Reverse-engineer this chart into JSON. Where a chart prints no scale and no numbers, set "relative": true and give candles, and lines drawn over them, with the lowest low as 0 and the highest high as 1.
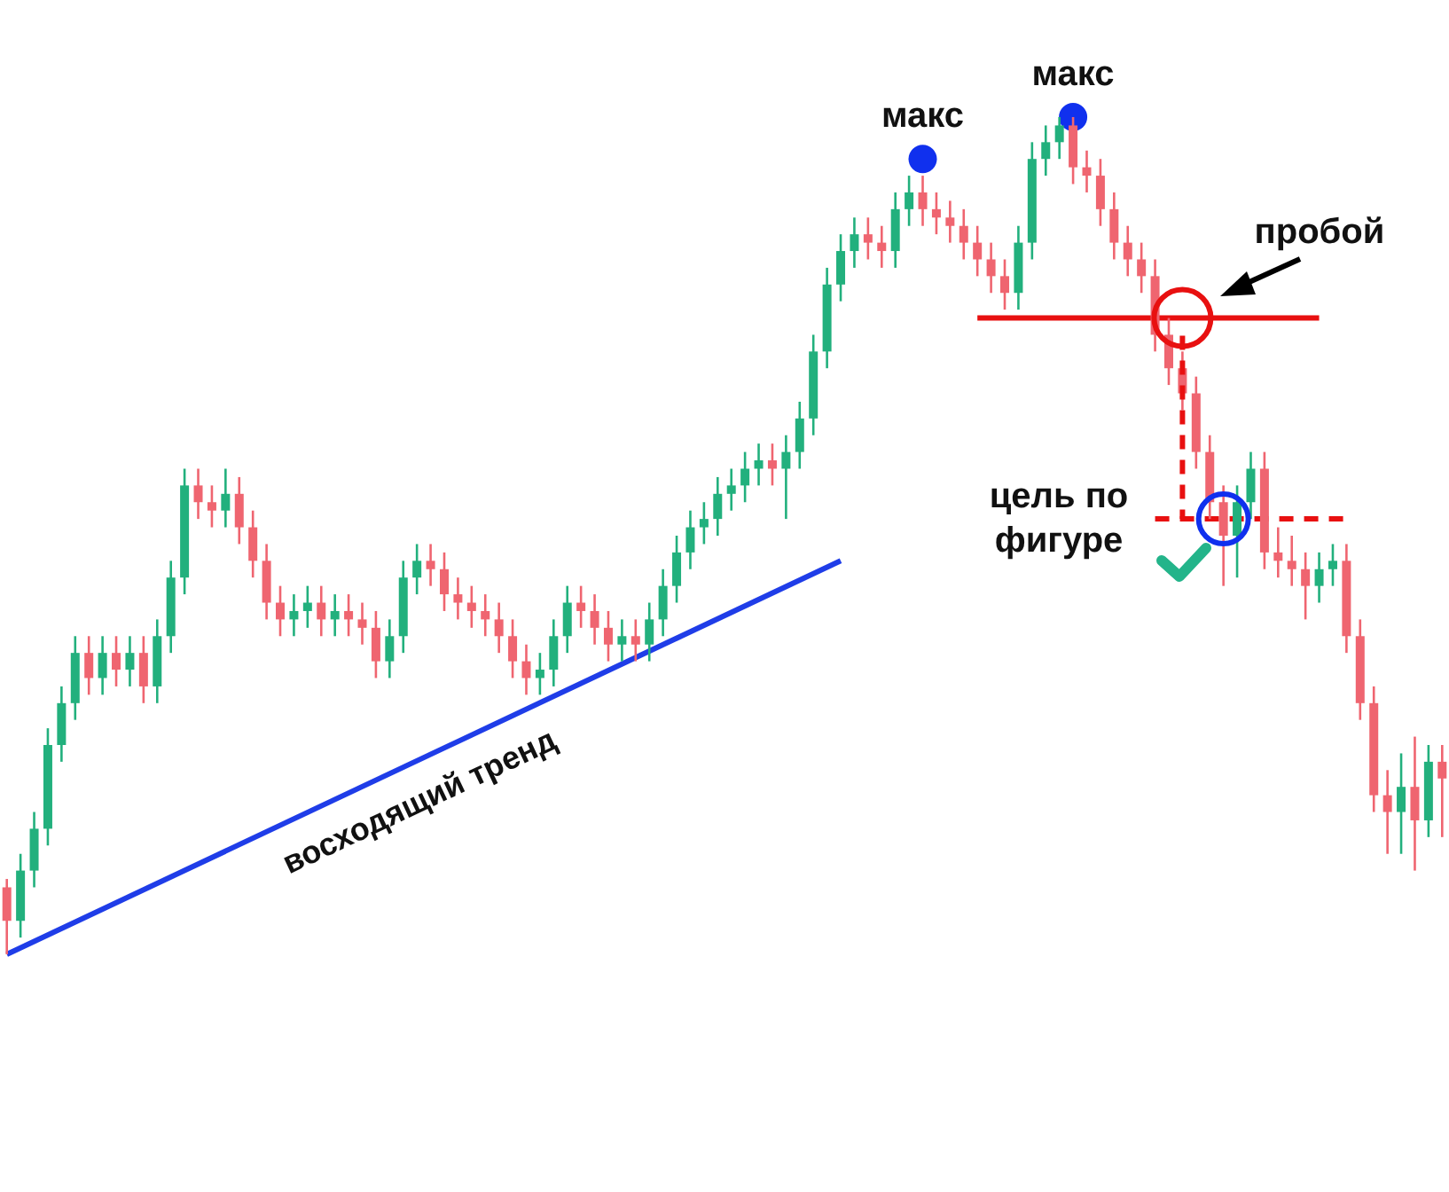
{
  "chart_data": {
    "type": "candlestick",
    "relative": true,
    "legend": false,
    "categories": [
      null,
      null,
      null,
      null,
      null,
      null,
      null,
      null,
      null,
      null,
      null,
      null,
      null,
      null,
      null,
      null,
      null,
      null,
      null,
      null,
      null,
      null,
      null,
      null,
      null,
      null,
      null,
      null,
      null,
      null,
      null,
      null,
      null,
      null,
      null,
      null,
      null,
      null,
      null,
      null,
      null,
      null,
      null,
      null,
      null,
      null,
      null,
      null,
      null,
      null,
      null,
      null,
      null,
      null,
      null,
      null,
      null,
      null,
      null,
      null,
      null,
      null,
      null,
      null,
      null,
      null,
      null,
      null,
      null,
      null,
      null,
      null,
      null,
      null,
      null,
      null,
      null,
      null,
      null,
      null,
      null,
      null,
      null,
      null,
      null,
      null,
      null,
      null,
      null,
      null,
      null,
      null,
      null,
      null,
      null,
      null,
      null,
      null,
      null,
      null,
      null,
      null,
      null,
      null,
      null,
      null
    ],
    "ohlc": [
      [
        0.08,
        0.09,
        0.0,
        0.04
      ],
      [
        0.04,
        0.12,
        0.02,
        0.1
      ],
      [
        0.1,
        0.17,
        0.08,
        0.15
      ],
      [
        0.15,
        0.27,
        0.13,
        0.25
      ],
      [
        0.25,
        0.32,
        0.23,
        0.3
      ],
      [
        0.3,
        0.38,
        0.28,
        0.36
      ],
      [
        0.36,
        0.38,
        0.31,
        0.33
      ],
      [
        0.33,
        0.38,
        0.31,
        0.36
      ],
      [
        0.36,
        0.38,
        0.32,
        0.34
      ],
      [
        0.34,
        0.38,
        0.32,
        0.36
      ],
      [
        0.36,
        0.38,
        0.3,
        0.32
      ],
      [
        0.32,
        0.4,
        0.3,
        0.38
      ],
      [
        0.38,
        0.47,
        0.36,
        0.45
      ],
      [
        0.45,
        0.58,
        0.43,
        0.56
      ],
      [
        0.56,
        0.58,
        0.52,
        0.54
      ],
      [
        0.54,
        0.56,
        0.51,
        0.53
      ],
      [
        0.53,
        0.58,
        0.51,
        0.55
      ],
      [
        0.55,
        0.57,
        0.49,
        0.51
      ],
      [
        0.51,
        0.53,
        0.45,
        0.47
      ],
      [
        0.47,
        0.49,
        0.4,
        0.42
      ],
      [
        0.42,
        0.44,
        0.38,
        0.4
      ],
      [
        0.4,
        0.43,
        0.38,
        0.41
      ],
      [
        0.41,
        0.44,
        0.39,
        0.42
      ],
      [
        0.42,
        0.44,
        0.38,
        0.4
      ],
      [
        0.4,
        0.43,
        0.38,
        0.41
      ],
      [
        0.41,
        0.43,
        0.38,
        0.4
      ],
      [
        0.4,
        0.42,
        0.37,
        0.39
      ],
      [
        0.39,
        0.41,
        0.33,
        0.35
      ],
      [
        0.35,
        0.4,
        0.33,
        0.38
      ],
      [
        0.38,
        0.47,
        0.36,
        0.45
      ],
      [
        0.45,
        0.49,
        0.43,
        0.47
      ],
      [
        0.47,
        0.49,
        0.44,
        0.46
      ],
      [
        0.46,
        0.48,
        0.41,
        0.43
      ],
      [
        0.43,
        0.45,
        0.4,
        0.42
      ],
      [
        0.42,
        0.44,
        0.39,
        0.41
      ],
      [
        0.41,
        0.43,
        0.38,
        0.4
      ],
      [
        0.4,
        0.42,
        0.36,
        0.38
      ],
      [
        0.38,
        0.4,
        0.33,
        0.35
      ],
      [
        0.35,
        0.37,
        0.31,
        0.33
      ],
      [
        0.33,
        0.36,
        0.31,
        0.34
      ],
      [
        0.34,
        0.4,
        0.32,
        0.38
      ],
      [
        0.38,
        0.44,
        0.36,
        0.42
      ],
      [
        0.42,
        0.44,
        0.39,
        0.41
      ],
      [
        0.41,
        0.43,
        0.37,
        0.39
      ],
      [
        0.39,
        0.41,
        0.35,
        0.37
      ],
      [
        0.37,
        0.4,
        0.35,
        0.38
      ],
      [
        0.38,
        0.4,
        0.35,
        0.37
      ],
      [
        0.37,
        0.42,
        0.35,
        0.4
      ],
      [
        0.4,
        0.46,
        0.38,
        0.44
      ],
      [
        0.44,
        0.5,
        0.42,
        0.48
      ],
      [
        0.48,
        0.53,
        0.46,
        0.51
      ],
      [
        0.51,
        0.54,
        0.49,
        0.52
      ],
      [
        0.52,
        0.57,
        0.5,
        0.55
      ],
      [
        0.55,
        0.58,
        0.53,
        0.56
      ],
      [
        0.56,
        0.6,
        0.54,
        0.58
      ],
      [
        0.58,
        0.61,
        0.56,
        0.59
      ],
      [
        0.59,
        0.61,
        0.56,
        0.58
      ],
      [
        0.58,
        0.62,
        0.52,
        0.6
      ],
      [
        0.6,
        0.66,
        0.58,
        0.64
      ],
      [
        0.64,
        0.74,
        0.62,
        0.72
      ],
      [
        0.72,
        0.82,
        0.7,
        0.8
      ],
      [
        0.8,
        0.86,
        0.78,
        0.84
      ],
      [
        0.84,
        0.88,
        0.82,
        0.86
      ],
      [
        0.86,
        0.88,
        0.83,
        0.85
      ],
      [
        0.85,
        0.87,
        0.82,
        0.84
      ],
      [
        0.84,
        0.91,
        0.82,
        0.89
      ],
      [
        0.89,
        0.93,
        0.87,
        0.91
      ],
      [
        0.91,
        0.93,
        0.87,
        0.89
      ],
      [
        0.89,
        0.91,
        0.86,
        0.88
      ],
      [
        0.88,
        0.9,
        0.85,
        0.87
      ],
      [
        0.87,
        0.89,
        0.83,
        0.85
      ],
      [
        0.85,
        0.87,
        0.81,
        0.83
      ],
      [
        0.83,
        0.85,
        0.79,
        0.81
      ],
      [
        0.81,
        0.83,
        0.77,
        0.79
      ],
      [
        0.79,
        0.87,
        0.77,
        0.85
      ],
      [
        0.85,
        0.97,
        0.83,
        0.95
      ],
      [
        0.95,
        0.99,
        0.93,
        0.97
      ],
      [
        0.97,
        1.0,
        0.95,
        0.99
      ],
      [
        0.99,
        1.0,
        0.92,
        0.94
      ],
      [
        0.94,
        0.96,
        0.91,
        0.93
      ],
      [
        0.93,
        0.95,
        0.87,
        0.89
      ],
      [
        0.89,
        0.91,
        0.83,
        0.85
      ],
      [
        0.85,
        0.87,
        0.81,
        0.83
      ],
      [
        0.83,
        0.85,
        0.79,
        0.81
      ],
      [
        0.81,
        0.83,
        0.72,
        0.74
      ],
      [
        0.74,
        0.76,
        0.68,
        0.7
      ],
      [
        0.7,
        0.72,
        0.65,
        0.67
      ],
      [
        0.67,
        0.69,
        0.58,
        0.6
      ],
      [
        0.6,
        0.62,
        0.52,
        0.54
      ],
      [
        0.54,
        0.56,
        0.44,
        0.5
      ],
      [
        0.5,
        0.56,
        0.45,
        0.54
      ],
      [
        0.54,
        0.6,
        0.52,
        0.58
      ],
      [
        0.58,
        0.6,
        0.46,
        0.48
      ],
      [
        0.48,
        0.51,
        0.45,
        0.47
      ],
      [
        0.47,
        0.5,
        0.44,
        0.46
      ],
      [
        0.46,
        0.48,
        0.4,
        0.44
      ],
      [
        0.44,
        0.48,
        0.42,
        0.46
      ],
      [
        0.46,
        0.49,
        0.44,
        0.47
      ],
      [
        0.47,
        0.49,
        0.36,
        0.38
      ],
      [
        0.38,
        0.4,
        0.28,
        0.3
      ],
      [
        0.3,
        0.32,
        0.17,
        0.19
      ],
      [
        0.19,
        0.22,
        0.12,
        0.17
      ],
      [
        0.17,
        0.24,
        0.12,
        0.2
      ],
      [
        0.2,
        0.26,
        0.1,
        0.16
      ],
      [
        0.16,
        0.25,
        0.14,
        0.23
      ],
      [
        0.23,
        0.25,
        0.14,
        0.21
      ]
    ],
    "series": [
      {
        "type": "line",
        "color": "#1f3de8",
        "values": [
          0.0,
          null,
          null,
          null,
          null,
          null,
          null,
          null,
          null,
          null,
          null,
          null,
          null,
          null,
          null,
          null,
          null,
          null,
          null,
          null,
          null,
          null,
          null,
          null,
          null,
          null,
          null,
          null,
          null,
          null,
          null,
          null,
          null,
          null,
          null,
          null,
          null,
          null,
          null,
          null,
          null,
          null,
          null,
          null,
          null,
          null,
          null,
          null,
          null,
          null,
          null,
          null,
          null,
          null,
          null,
          null,
          null,
          null,
          null,
          null,
          null,
          0.47,
          null,
          null,
          null,
          null,
          null,
          null,
          null,
          null,
          null,
          null,
          null,
          null,
          null,
          null,
          null,
          null,
          null,
          null,
          null,
          null,
          null,
          null,
          null,
          null,
          null,
          null,
          null,
          null,
          null,
          null,
          null,
          null,
          null,
          null,
          null,
          null,
          null,
          null,
          null,
          null,
          null,
          null,
          null,
          null
        ]
      },
      {
        "type": "line",
        "color": "#e81010",
        "values": [
          null,
          null,
          null,
          null,
          null,
          null,
          null,
          null,
          null,
          null,
          null,
          null,
          null,
          null,
          null,
          null,
          null,
          null,
          null,
          null,
          null,
          null,
          null,
          null,
          null,
          null,
          null,
          null,
          null,
          null,
          null,
          null,
          null,
          null,
          null,
          null,
          null,
          null,
          null,
          null,
          null,
          null,
          null,
          null,
          null,
          null,
          null,
          null,
          null,
          null,
          null,
          null,
          null,
          null,
          null,
          null,
          null,
          null,
          null,
          null,
          null,
          null,
          null,
          null,
          null,
          null,
          null,
          null,
          null,
          null,
          null,
          0.76,
          null,
          null,
          null,
          null,
          null,
          null,
          null,
          null,
          null,
          null,
          null,
          null,
          null,
          null,
          null,
          null,
          null,
          null,
          null,
          null,
          null,
          null,
          null,
          null,
          0.76,
          null,
          null,
          null,
          null,
          null,
          null,
          null,
          null,
          null
        ]
      },
      {
        "type": "line",
        "color": "#e81010",
        "line_style": "dashed",
        "values": [
          null,
          null,
          null,
          null,
          null,
          null,
          null,
          null,
          null,
          null,
          null,
          null,
          null,
          null,
          null,
          null,
          null,
          null,
          null,
          null,
          null,
          null,
          null,
          null,
          null,
          null,
          null,
          null,
          null,
          null,
          null,
          null,
          null,
          null,
          null,
          null,
          null,
          null,
          null,
          null,
          null,
          null,
          null,
          null,
          null,
          null,
          null,
          null,
          null,
          null,
          null,
          null,
          null,
          null,
          null,
          null,
          null,
          null,
          null,
          null,
          null,
          null,
          null,
          null,
          null,
          null,
          null,
          null,
          null,
          null,
          null,
          null,
          null,
          null,
          null,
          null,
          null,
          null,
          null,
          null,
          null,
          null,
          null,
          null,
          0.52,
          null,
          null,
          null,
          null,
          null,
          null,
          null,
          null,
          null,
          null,
          null,
          null,
          null,
          0.52,
          null,
          null,
          null,
          null,
          null,
          null,
          null
        ]
      },
      {
        "type": "scatter",
        "color": "#1030ee",
        "marker": "circle",
        "values": [
          null,
          null,
          null,
          null,
          null,
          null,
          null,
          null,
          null,
          null,
          null,
          null,
          null,
          null,
          null,
          null,
          null,
          null,
          null,
          null,
          null,
          null,
          null,
          null,
          null,
          null,
          null,
          null,
          null,
          null,
          null,
          null,
          null,
          null,
          null,
          null,
          null,
          null,
          null,
          null,
          null,
          null,
          null,
          null,
          null,
          null,
          null,
          null,
          null,
          null,
          null,
          null,
          null,
          null,
          null,
          null,
          null,
          null,
          null,
          null,
          null,
          null,
          null,
          null,
          null,
          null,
          null,
          0.95,
          null,
          null,
          null,
          null,
          null,
          null,
          null,
          null,
          null,
          null,
          1.0,
          null,
          null,
          null,
          null,
          null,
          null,
          null,
          null,
          null,
          null,
          null,
          null,
          null,
          null,
          null,
          null,
          null,
          null,
          null,
          null,
          null,
          null,
          null,
          null,
          null,
          null,
          null
        ]
      }
    ],
    "annotations": [
      "макс",
      "макс",
      "пробой",
      "цель по фигуре",
      "восходящий тренд"
    ]
  }
}
